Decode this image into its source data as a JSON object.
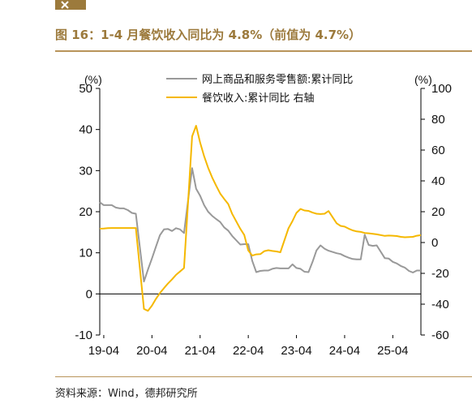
{
  "header": {
    "title": "图 16：1-4 月餐饮收入同比为 4.8%（前值为 4.7%）"
  },
  "footer": {
    "source": "资料来源：Wind，德邦研究所"
  },
  "colors": {
    "brand": "#9c7a3c",
    "rule": "#b8945a",
    "online_retail_line": "#999999",
    "catering_line": "#f5b800"
  },
  "chart_data": {
    "type": "line",
    "title": "",
    "left_unit": "(%)",
    "right_unit": "(%)",
    "x_tick_labels": [
      "19-04",
      "20-04",
      "21-04",
      "22-04",
      "23-04",
      "24-04",
      "25-04"
    ],
    "y_left": {
      "min": -10,
      "max": 50,
      "ticks": [
        "-10",
        "0",
        "10",
        "20",
        "30",
        "40",
        "50"
      ]
    },
    "y_right": {
      "min": -60,
      "max": 100,
      "ticks": [
        "-60",
        "-40",
        "-20",
        "0",
        "20",
        "40",
        "60",
        "80",
        "100"
      ]
    },
    "legend_position": "top-center",
    "grid": false,
    "series": [
      {
        "name": "网上商品和服务零售额:累计同比",
        "axis": "left",
        "color": "#999999",
        "points": [
          [
            "2019-03",
            22.3
          ],
          [
            "2019-04",
            21.6
          ],
          [
            "2019-05",
            21.6
          ],
          [
            "2019-06",
            21.6
          ],
          [
            "2019-07",
            21.0
          ],
          [
            "2019-08",
            20.8
          ],
          [
            "2019-09",
            20.8
          ],
          [
            "2019-10",
            20.4
          ],
          [
            "2019-11",
            19.7
          ],
          [
            "2019-12",
            19.5
          ],
          [
            "2020-02",
            3.0
          ],
          [
            "2020-03",
            5.9
          ],
          [
            "2020-04",
            8.6
          ],
          [
            "2020-05",
            11.5
          ],
          [
            "2020-06",
            14.3
          ],
          [
            "2020-07",
            15.7
          ],
          [
            "2020-08",
            15.8
          ],
          [
            "2020-09",
            15.3
          ],
          [
            "2020-10",
            16.0
          ],
          [
            "2020-11",
            15.7
          ],
          [
            "2020-12",
            14.8
          ],
          [
            "2021-02",
            30.6
          ],
          [
            "2021-03",
            25.6
          ],
          [
            "2021-04",
            23.9
          ],
          [
            "2021-05",
            21.6
          ],
          [
            "2021-06",
            20.0
          ],
          [
            "2021-07",
            19.0
          ],
          [
            "2021-08",
            18.2
          ],
          [
            "2021-09",
            17.5
          ],
          [
            "2021-10",
            16.2
          ],
          [
            "2021-11",
            15.4
          ],
          [
            "2021-12",
            14.1
          ],
          [
            "2022-02",
            12.0
          ],
          [
            "2022-03",
            12.1
          ],
          [
            "2022-04",
            12.1
          ],
          [
            "2022-05",
            8.0
          ],
          [
            "2022-06",
            5.3
          ],
          [
            "2022-07",
            5.6
          ],
          [
            "2022-08",
            5.7
          ],
          [
            "2022-09",
            5.7
          ],
          [
            "2022-10",
            6.1
          ],
          [
            "2022-11",
            6.3
          ],
          [
            "2022-12",
            6.2
          ],
          [
            "2023-02",
            6.2
          ],
          [
            "2023-03",
            7.2
          ],
          [
            "2023-04",
            6.3
          ],
          [
            "2023-05",
            6.1
          ],
          [
            "2023-06",
            5.4
          ],
          [
            "2023-07",
            5.3
          ],
          [
            "2023-08",
            7.8
          ],
          [
            "2023-09",
            10.6
          ],
          [
            "2023-10",
            11.8
          ],
          [
            "2023-11",
            11.0
          ],
          [
            "2023-12",
            10.5
          ],
          [
            "2024-02",
            9.9
          ],
          [
            "2024-03",
            9.7
          ],
          [
            "2024-04",
            9.2
          ],
          [
            "2024-05",
            8.8
          ],
          [
            "2024-06",
            8.5
          ],
          [
            "2024-07",
            8.4
          ],
          [
            "2024-08",
            8.4
          ],
          [
            "2024-09",
            14.4
          ],
          [
            "2024-10",
            11.9
          ],
          [
            "2024-11",
            11.7
          ],
          [
            "2024-12",
            11.8
          ],
          [
            "2025-02",
            8.7
          ],
          [
            "2025-03",
            8.6
          ],
          [
            "2025-04",
            7.8
          ],
          [
            "2025-05",
            7.4
          ],
          [
            "2025-06",
            6.8
          ],
          [
            "2025-07",
            6.4
          ],
          [
            "2025-08",
            5.6
          ],
          [
            "2025-09",
            5.2
          ],
          [
            "2025-10",
            5.7
          ],
          [
            "2025-11",
            5.7
          ]
        ]
      },
      {
        "name": "餐饮收入:累计同比 右轴",
        "axis": "right",
        "color": "#f5b800",
        "points": [
          [
            "2019-03",
            9.0
          ],
          [
            "2019-04",
            9.1
          ],
          [
            "2019-05",
            9.3
          ],
          [
            "2019-06",
            9.4
          ],
          [
            "2019-07",
            9.4
          ],
          [
            "2019-08",
            9.4
          ],
          [
            "2019-09",
            9.4
          ],
          [
            "2019-10",
            9.4
          ],
          [
            "2019-11",
            9.4
          ],
          [
            "2019-12",
            9.4
          ],
          [
            "2020-02",
            -43.1
          ],
          [
            "2020-03",
            -44.3
          ],
          [
            "2020-04",
            -41.0
          ],
          [
            "2020-05",
            -36.5
          ],
          [
            "2020-06",
            -32.8
          ],
          [
            "2020-07",
            -29.6
          ],
          [
            "2020-08",
            -26.5
          ],
          [
            "2020-09",
            -23.9
          ],
          [
            "2020-10",
            -21.0
          ],
          [
            "2020-11",
            -18.8
          ],
          [
            "2020-12",
            -16.6
          ],
          [
            "2021-02",
            68.9
          ],
          [
            "2021-03",
            75.8
          ],
          [
            "2021-04",
            65.0
          ],
          [
            "2021-05",
            56.0
          ],
          [
            "2021-06",
            48.6
          ],
          [
            "2021-07",
            42.2
          ],
          [
            "2021-08",
            36.8
          ],
          [
            "2021-09",
            31.8
          ],
          [
            "2021-10",
            28.3
          ],
          [
            "2021-11",
            25.0
          ],
          [
            "2021-12",
            18.6
          ],
          [
            "2022-02",
            8.9
          ],
          [
            "2022-03",
            4.9
          ],
          [
            "2022-04",
            -5.1
          ],
          [
            "2022-05",
            -8.5
          ],
          [
            "2022-06",
            -7.7
          ],
          [
            "2022-07",
            -7.5
          ],
          [
            "2022-08",
            -5.6
          ],
          [
            "2022-09",
            -5.0
          ],
          [
            "2022-10",
            -5.5
          ],
          [
            "2022-11",
            -5.8
          ],
          [
            "2022-12",
            -6.3
          ],
          [
            "2023-02",
            9.2
          ],
          [
            "2023-03",
            13.9
          ],
          [
            "2023-04",
            19.2
          ],
          [
            "2023-05",
            21.8
          ],
          [
            "2023-06",
            20.8
          ],
          [
            "2023-07",
            20.5
          ],
          [
            "2023-08",
            19.4
          ],
          [
            "2023-09",
            18.7
          ],
          [
            "2023-10",
            18.5
          ],
          [
            "2023-11",
            18.7
          ],
          [
            "2023-12",
            20.4
          ],
          [
            "2024-02",
            12.5
          ],
          [
            "2024-03",
            10.8
          ],
          [
            "2024-04",
            10.3
          ],
          [
            "2024-05",
            9.0
          ],
          [
            "2024-06",
            7.9
          ],
          [
            "2024-07",
            7.2
          ],
          [
            "2024-08",
            6.9
          ],
          [
            "2024-09",
            6.2
          ],
          [
            "2024-10",
            6.0
          ],
          [
            "2024-11",
            5.7
          ],
          [
            "2024-12",
            5.3
          ],
          [
            "2025-02",
            4.3
          ],
          [
            "2025-03",
            4.5
          ],
          [
            "2025-04",
            4.4
          ],
          [
            "2025-05",
            4.2
          ],
          [
            "2025-06",
            3.7
          ],
          [
            "2025-07",
            3.4
          ],
          [
            "2025-08",
            3.6
          ],
          [
            "2025-09",
            3.7
          ],
          [
            "2025-10",
            4.4
          ],
          [
            "2025-11",
            4.8
          ]
        ]
      }
    ]
  }
}
